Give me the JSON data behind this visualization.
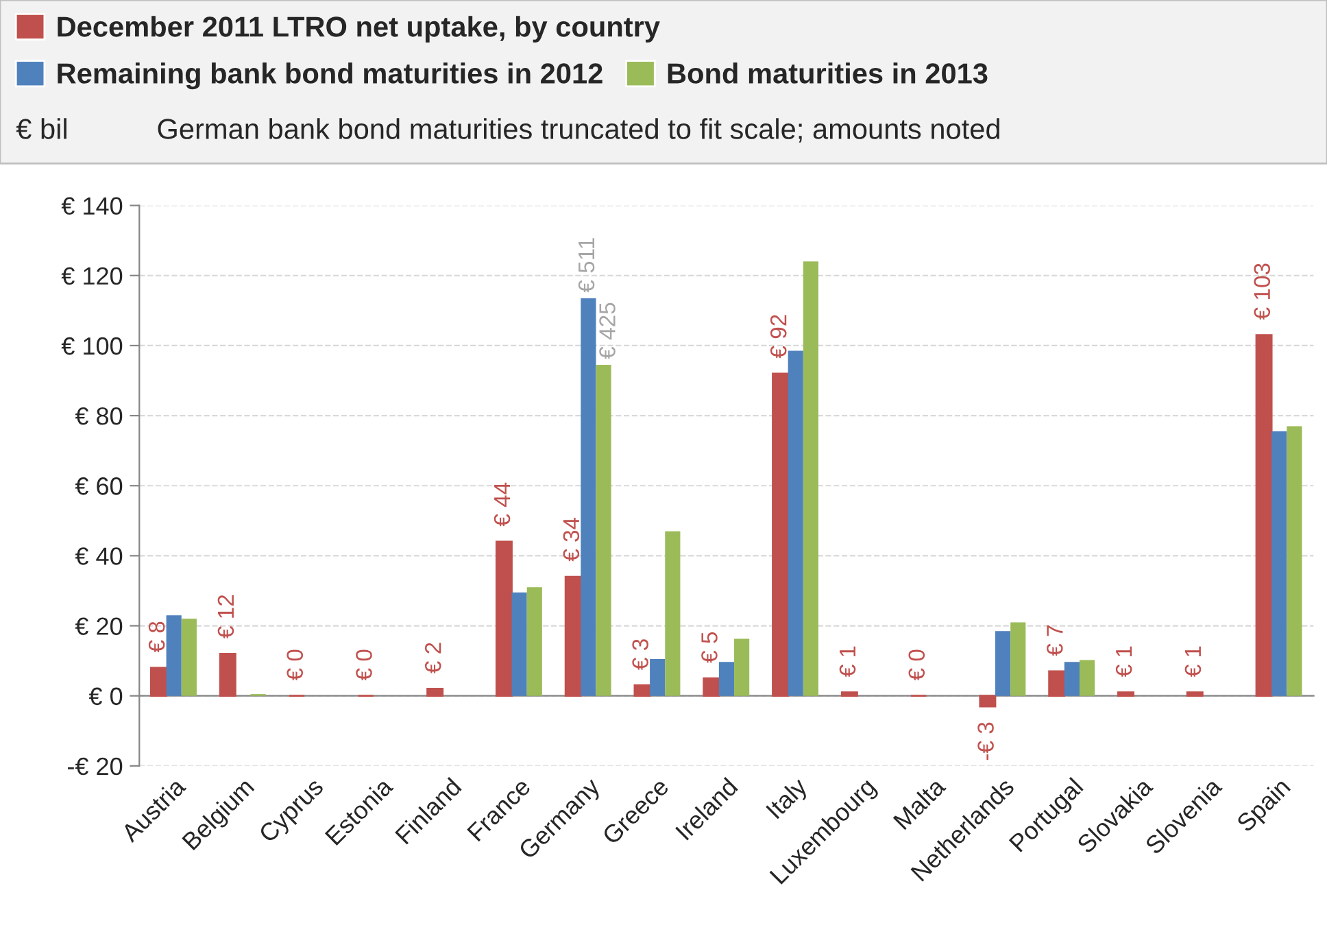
{
  "chart_data": {
    "type": "bar",
    "ylabel": "€ bil",
    "subtitle": "German bank bond maturities truncated to fit scale; amounts noted",
    "categories": [
      "Austria",
      "Belgium",
      "Cyprus",
      "Estonia",
      "Finland",
      "France",
      "Germany",
      "Greece",
      "Ireland",
      "Italy",
      "Luxembourg",
      "Malta",
      "Netherlands",
      "Portugal",
      "Slovakia",
      "Slovenia",
      "Spain"
    ],
    "series": [
      {
        "name": "December 2011 LTRO net uptake, by country",
        "color": "#c0504d",
        "values": [
          8,
          12,
          0,
          0,
          2,
          44,
          34,
          3,
          5,
          92,
          1,
          0,
          -3,
          7,
          1,
          1,
          103
        ],
        "value_labels": [
          "€ 8",
          "€ 12",
          "€ 0",
          "€ 0",
          "€ 2",
          "€ 44",
          "€ 34",
          "€ 3",
          "€ 5",
          "€ 92",
          "€ 1",
          "€ 0",
          "-€ 3",
          "€ 7",
          "€ 1",
          "€ 1",
          "€ 103"
        ]
      },
      {
        "name": "Remaining bank bond maturities in 2012",
        "color": "#4f81bd",
        "values": [
          23,
          0,
          0,
          0,
          0,
          29.5,
          113.5,
          10.5,
          9.7,
          98.5,
          0,
          0,
          18.5,
          9.7,
          0,
          0,
          75.5
        ]
      },
      {
        "name": "Bond maturities in 2013",
        "color": "#9bbb59",
        "values": [
          22,
          0.5,
          0,
          0,
          0,
          31,
          94.5,
          47,
          16.3,
          124,
          0,
          0,
          21,
          10.2,
          0,
          0,
          77
        ]
      }
    ],
    "annotations": [
      {
        "text": "€ 511",
        "x": "Germany",
        "y": 113.5
      },
      {
        "text": "€ 425",
        "x": "Germany",
        "y": 94.5
      }
    ],
    "ylim": [
      -20,
      140
    ],
    "yticks": [
      {
        "value": -20,
        "label": "-€ 20"
      },
      {
        "value": 0,
        "label": "€ 0"
      },
      {
        "value": 20,
        "label": "€ 20"
      },
      {
        "value": 40,
        "label": "€ 40"
      },
      {
        "value": 60,
        "label": "€ 60"
      },
      {
        "value": 80,
        "label": "€ 80"
      },
      {
        "value": 100,
        "label": "€ 100"
      },
      {
        "value": 120,
        "label": "€ 120"
      },
      {
        "value": 140,
        "label": "€ 140"
      }
    ],
    "grid": "y",
    "legend": "top"
  }
}
